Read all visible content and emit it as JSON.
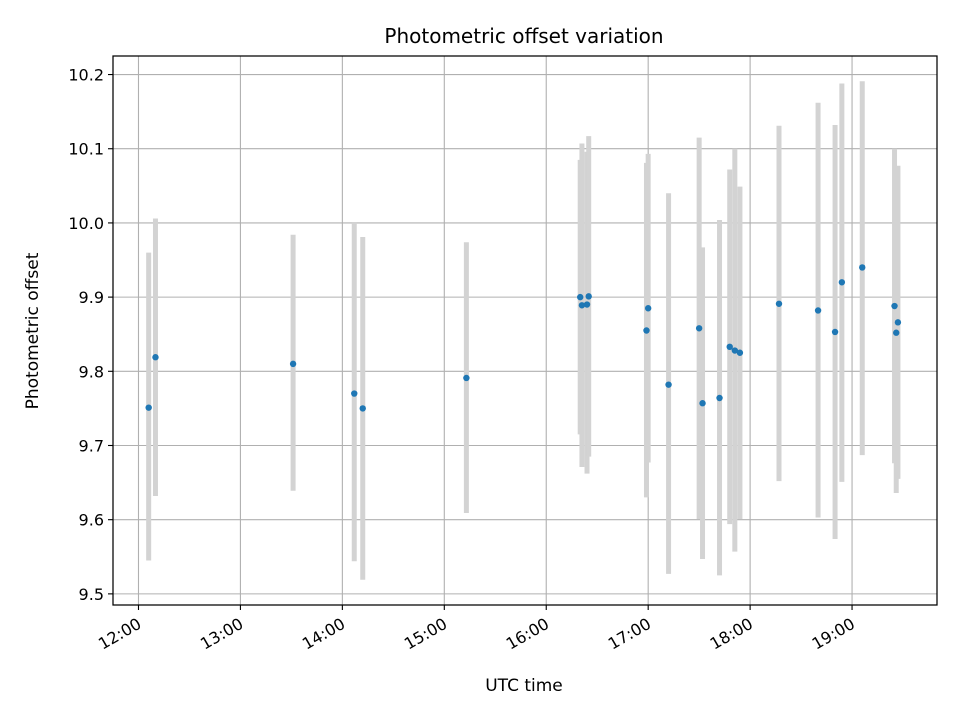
{
  "chart_data": {
    "type": "scatter",
    "title": "Photometric offset variation",
    "xlabel": "UTC time",
    "ylabel": "Photometric offset",
    "xlim": [
      "11:45",
      "19:50"
    ],
    "ylim": [
      9.485,
      10.225
    ],
    "x_ticks": [
      "12:00",
      "13:00",
      "14:00",
      "15:00",
      "16:00",
      "17:00",
      "18:00",
      "19:00"
    ],
    "y_ticks": [
      "9.5",
      "9.6",
      "9.7",
      "9.8",
      "9.9",
      "10.0",
      "10.1",
      "10.2"
    ],
    "grid": true,
    "marker_color": "#1f77b4",
    "errorbar_color": "#d3d3d3",
    "points": [
      {
        "t": "12:06",
        "y": 9.751,
        "lo": 9.545,
        "hi": 9.96
      },
      {
        "t": "12:10",
        "y": 9.819,
        "lo": 9.632,
        "hi": 10.006
      },
      {
        "t": "13:31",
        "y": 9.81,
        "lo": 9.639,
        "hi": 9.984
      },
      {
        "t": "14:07",
        "y": 9.77,
        "lo": 9.544,
        "hi": 10.0
      },
      {
        "t": "14:12",
        "y": 9.75,
        "lo": 9.519,
        "hi": 9.981
      },
      {
        "t": "15:13",
        "y": 9.791,
        "lo": 9.609,
        "hi": 9.974
      },
      {
        "t": "16:20",
        "y": 9.9,
        "lo": 9.715,
        "hi": 10.085
      },
      {
        "t": "16:21",
        "y": 9.889,
        "lo": 9.671,
        "hi": 10.107
      },
      {
        "t": "16:24",
        "y": 9.89,
        "lo": 9.662,
        "hi": 10.096
      },
      {
        "t": "16:25",
        "y": 9.901,
        "lo": 9.685,
        "hi": 10.117
      },
      {
        "t": "16:59",
        "y": 9.855,
        "lo": 9.63,
        "hi": 10.081
      },
      {
        "t": "17:00",
        "y": 9.885,
        "lo": 9.677,
        "hi": 10.093
      },
      {
        "t": "17:12",
        "y": 9.782,
        "lo": 9.527,
        "hi": 10.04
      },
      {
        "t": "17:30",
        "y": 9.858,
        "lo": 9.601,
        "hi": 10.115
      },
      {
        "t": "17:32",
        "y": 9.757,
        "lo": 9.547,
        "hi": 9.967
      },
      {
        "t": "17:42",
        "y": 9.764,
        "lo": 9.525,
        "hi": 10.004
      },
      {
        "t": "17:48",
        "y": 9.833,
        "lo": 9.594,
        "hi": 10.072
      },
      {
        "t": "17:51",
        "y": 9.828,
        "lo": 9.557,
        "hi": 10.1
      },
      {
        "t": "17:54",
        "y": 9.825,
        "lo": 9.601,
        "hi": 10.049
      },
      {
        "t": "18:17",
        "y": 9.891,
        "lo": 9.652,
        "hi": 10.131
      },
      {
        "t": "18:40",
        "y": 9.882,
        "lo": 9.603,
        "hi": 10.162
      },
      {
        "t": "18:50",
        "y": 9.853,
        "lo": 9.574,
        "hi": 10.132
      },
      {
        "t": "18:54",
        "y": 9.92,
        "lo": 9.651,
        "hi": 10.188
      },
      {
        "t": "19:06",
        "y": 9.94,
        "lo": 9.687,
        "hi": 10.191
      },
      {
        "t": "19:25",
        "y": 9.888,
        "lo": 9.676,
        "hi": 10.1
      },
      {
        "t": "19:26",
        "y": 9.852,
        "lo": 9.636,
        "hi": 10.068
      },
      {
        "t": "19:27",
        "y": 9.866,
        "lo": 9.655,
        "hi": 10.077
      }
    ]
  }
}
